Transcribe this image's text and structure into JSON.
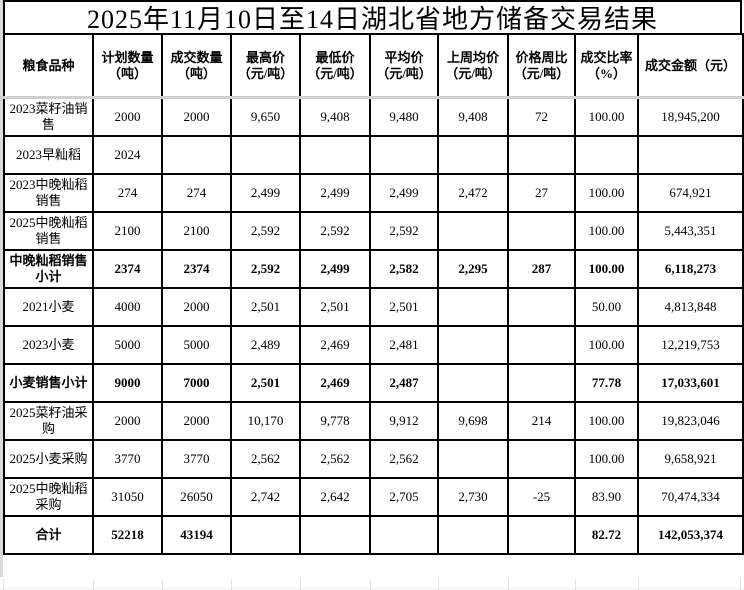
{
  "page": {
    "title": "2025年11月10日至14日湖北省地方储备交易结果"
  },
  "table": {
    "headers": [
      "粮食品种",
      "计划数量\n（吨）",
      "成交数量\n（吨）",
      "最高价\n（元/吨）",
      "最低价\n（元/吨）",
      "平均价\n（元/吨）",
      "上周均价\n（元/吨）",
      "价格周比\n（元/吨）",
      "成交比率\n（%）",
      "成交金额（元）"
    ],
    "rows": [
      {
        "name": "2023菜籽油销售",
        "bold": false,
        "values": [
          "2000",
          "2000",
          "9,650",
          "9,408",
          "9,480",
          "9,408",
          "72",
          "100.00",
          "18,945,200"
        ]
      },
      {
        "name": "2023早籼稻",
        "bold": false,
        "values": [
          "2024",
          "",
          "",
          "",
          "",
          "",
          "",
          "",
          ""
        ]
      },
      {
        "name": "2023中晚籼稻销售",
        "bold": false,
        "values": [
          "274",
          "274",
          "2,499",
          "2,499",
          "2,499",
          "2,472",
          "27",
          "100.00",
          "674,921"
        ]
      },
      {
        "name": "2025中晚籼稻销售",
        "bold": false,
        "values": [
          "2100",
          "2100",
          "2,592",
          "2,592",
          "2,592",
          "",
          "",
          "100.00",
          "5,443,351"
        ]
      },
      {
        "name": "中晚籼稻销售小计",
        "bold": true,
        "values": [
          "2374",
          "2374",
          "2,592",
          "2,499",
          "2,582",
          "2,295",
          "287",
          "100.00",
          "6,118,273"
        ]
      },
      {
        "name": "2021小麦",
        "bold": false,
        "values": [
          "4000",
          "2000",
          "2,501",
          "2,501",
          "2,501",
          "",
          "",
          "50.00",
          "4,813,848"
        ]
      },
      {
        "name": "2023小麦",
        "bold": false,
        "values": [
          "5000",
          "5000",
          "2,489",
          "2,469",
          "2,481",
          "",
          "",
          "100.00",
          "12,219,753"
        ]
      },
      {
        "name": "小麦销售小计",
        "bold": true,
        "values": [
          "9000",
          "7000",
          "2,501",
          "2,469",
          "2,487",
          "",
          "",
          "77.78",
          "17,033,601"
        ]
      },
      {
        "name": "2025菜籽油采购",
        "bold": false,
        "values": [
          "2000",
          "2000",
          "10,170",
          "9,778",
          "9,912",
          "9,698",
          "214",
          "100.00",
          "19,823,046"
        ]
      },
      {
        "name": "2025小麦采购",
        "bold": false,
        "values": [
          "3770",
          "3770",
          "2,562",
          "2,562",
          "2,562",
          "",
          "",
          "100.00",
          "9,658,921"
        ]
      },
      {
        "name": "2025中晚籼稻采购",
        "bold": false,
        "values": [
          "31050",
          "26050",
          "2,742",
          "2,642",
          "2,705",
          "2,730",
          "-25",
          "83.90",
          "70,474,334"
        ]
      },
      {
        "name": "合计",
        "bold": true,
        "values": [
          "52218",
          "43194",
          "",
          "",
          "",
          "",
          "",
          "82.72",
          "142,053,374"
        ]
      }
    ]
  }
}
